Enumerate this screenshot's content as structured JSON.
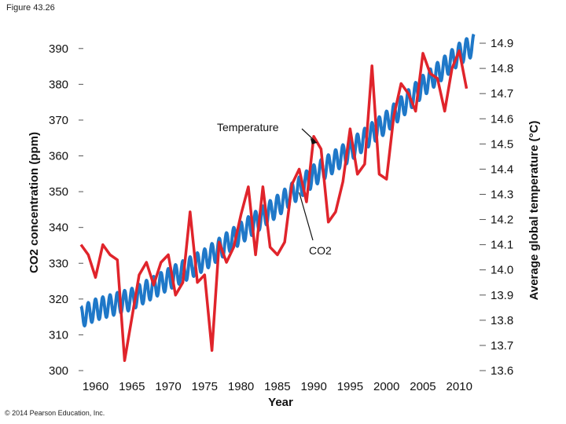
{
  "figure_label": "Figure 43.26",
  "copyright": "© 2014 Pearson Education, Inc.",
  "colors": {
    "co2": "#1f78c8",
    "temperature": "#e0242b"
  },
  "chart_data": {
    "type": "line",
    "xlabel": "Year",
    "ylabel_left": "CO2 concentration (ppm)",
    "ylabel_right": "Average global temperature (°C)",
    "xlim": [
      1958,
      2013
    ],
    "ylim_left": [
      300,
      395
    ],
    "ylim_right": [
      13.6,
      14.95
    ],
    "x_ticks": [
      1960,
      1965,
      1970,
      1975,
      1980,
      1985,
      1990,
      1995,
      2000,
      2005,
      2010
    ],
    "y_ticks_left": [
      300,
      310,
      320,
      330,
      340,
      350,
      360,
      370,
      380,
      390
    ],
    "y_ticks_right": [
      "13.6",
      "13.7",
      "13.8",
      "13.9",
      "14.0",
      "14.1",
      "14.2",
      "14.3",
      "14.4",
      "14.5",
      "14.6",
      "14.7",
      "14.8",
      "14.9"
    ],
    "annotations": [
      {
        "text": "Temperature",
        "series": "temperature",
        "x": 1990.5
      },
      {
        "text": "CO2",
        "series": "co2",
        "x": 1988
      }
    ],
    "series": [
      {
        "id": "co2",
        "axis": "left",
        "label": "CO2",
        "seasonal_amplitude": 3,
        "x": [
          1958,
          1960,
          1965,
          1970,
          1975,
          1980,
          1985,
          1990,
          1995,
          2000,
          2005,
          2010,
          2012
        ],
        "values": [
          315,
          317,
          320,
          325.5,
          331,
          338.5,
          346,
          354.5,
          361.5,
          369.5,
          379.5,
          388.5,
          391
        ]
      },
      {
        "id": "temperature",
        "axis": "right",
        "label": "Temperature",
        "x": [
          1958,
          1959,
          1960,
          1961,
          1962,
          1963,
          1964,
          1965,
          1966,
          1967,
          1968,
          1969,
          1970,
          1971,
          1972,
          1973,
          1974,
          1975,
          1976,
          1977,
          1978,
          1979,
          1980,
          1981,
          1982,
          1983,
          1984,
          1985,
          1986,
          1987,
          1988,
          1989,
          1990,
          1991,
          1992,
          1993,
          1994,
          1995,
          1996,
          1997,
          1998,
          1999,
          2000,
          2001,
          2002,
          2003,
          2004,
          2005,
          2006,
          2007,
          2008,
          2009,
          2010,
          2011
        ],
        "values": [
          14.1,
          14.06,
          13.97,
          14.1,
          14.06,
          14.04,
          13.64,
          13.81,
          13.98,
          14.03,
          13.94,
          14.03,
          14.06,
          13.9,
          13.95,
          14.23,
          13.95,
          13.98,
          13.68,
          14.11,
          14.03,
          14.09,
          14.22,
          14.33,
          14.06,
          14.33,
          14.09,
          14.06,
          14.11,
          14.34,
          14.4,
          14.27,
          14.53,
          14.48,
          14.19,
          14.23,
          14.35,
          14.56,
          14.38,
          14.42,
          14.81,
          14.38,
          14.36,
          14.61,
          14.74,
          14.7,
          14.63,
          14.86,
          14.78,
          14.76,
          14.63,
          14.8,
          14.87,
          14.72
        ]
      }
    ]
  }
}
